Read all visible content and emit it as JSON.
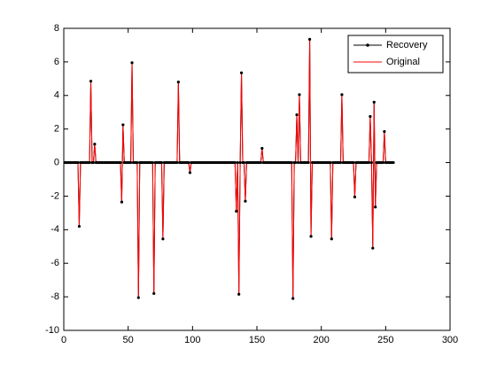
{
  "chart_data": {
    "type": "line",
    "x": [
      1,
      2,
      3,
      4,
      5,
      6,
      7,
      8,
      9,
      10,
      11,
      12,
      13,
      14,
      15,
      16,
      17,
      18,
      19,
      20,
      21,
      22,
      23,
      24,
      25,
      26,
      27,
      28,
      29,
      30,
      31,
      32,
      33,
      34,
      35,
      36,
      37,
      38,
      39,
      40,
      41,
      42,
      43,
      44,
      45,
      46,
      47,
      48,
      49,
      50,
      51,
      52,
      53,
      54,
      55,
      56,
      57,
      58,
      59,
      60,
      61,
      62,
      63,
      64,
      65,
      66,
      67,
      68,
      69,
      70,
      71,
      72,
      73,
      74,
      75,
      76,
      77,
      78,
      79,
      80,
      81,
      82,
      83,
      84,
      85,
      86,
      87,
      88,
      89,
      90,
      91,
      92,
      93,
      94,
      95,
      96,
      97,
      98,
      99,
      100,
      101,
      102,
      103,
      104,
      105,
      106,
      107,
      108,
      109,
      110,
      111,
      112,
      113,
      114,
      115,
      116,
      117,
      118,
      119,
      120,
      121,
      122,
      123,
      124,
      125,
      126,
      127,
      128,
      129,
      130,
      131,
      132,
      133,
      134,
      135,
      136,
      137,
      138,
      139,
      140,
      141,
      142,
      143,
      144,
      145,
      146,
      147,
      148,
      149,
      150,
      151,
      152,
      153,
      154,
      155,
      156,
      157,
      158,
      159,
      160,
      161,
      162,
      163,
      164,
      165,
      166,
      167,
      168,
      169,
      170,
      171,
      172,
      173,
      174,
      175,
      176,
      177,
      178,
      179,
      180,
      181,
      182,
      183,
      184,
      185,
      186,
      187,
      188,
      189,
      190,
      191,
      192,
      193,
      194,
      195,
      196,
      197,
      198,
      199,
      200,
      201,
      202,
      203,
      204,
      205,
      206,
      207,
      208,
      209,
      210,
      211,
      212,
      213,
      214,
      215,
      216,
      217,
      218,
      219,
      220,
      221,
      222,
      223,
      224,
      225,
      226,
      227,
      228,
      229,
      230,
      231,
      232,
      233,
      234,
      235,
      236,
      237,
      238,
      239,
      240,
      241,
      242,
      243,
      244,
      245,
      246,
      247,
      248,
      249,
      250,
      251,
      252,
      253,
      254,
      255,
      256
    ],
    "series": [
      {
        "name": "Recovery",
        "color": "#000000",
        "marker": "dot",
        "values": [
          0,
          0,
          0,
          0,
          0,
          0,
          0,
          0,
          0,
          0,
          0,
          -3.8,
          0,
          0,
          0,
          0,
          0,
          0,
          0,
          0,
          4.85,
          0,
          0,
          1.1,
          0,
          0,
          0,
          0,
          0,
          0,
          0,
          0,
          0,
          0,
          0,
          0,
          0,
          0,
          0,
          0,
          0,
          0,
          0,
          0,
          -2.35,
          2.25,
          0,
          0,
          0,
          0,
          0,
          0,
          5.95,
          0,
          0,
          0,
          0,
          -8.05,
          0,
          0,
          0,
          0,
          0,
          0,
          0,
          0,
          0,
          0,
          0,
          -7.8,
          0,
          0,
          0,
          0,
          0,
          0,
          -4.55,
          0,
          0,
          0,
          0,
          0,
          0,
          0,
          0,
          0,
          0,
          0,
          4.8,
          0,
          0,
          0,
          0,
          0,
          0,
          0,
          0,
          -0.6,
          0,
          0,
          0,
          0,
          0,
          0,
          0,
          0,
          0,
          0,
          0,
          0,
          0,
          0,
          0,
          0,
          0,
          0,
          0,
          0,
          0,
          0,
          0,
          0,
          0,
          0,
          0,
          0,
          0,
          0,
          0,
          0,
          0,
          0,
          0,
          -2.9,
          0,
          -7.85,
          0,
          5.35,
          0,
          0,
          -2.3,
          0,
          0,
          0,
          0,
          0,
          0,
          0,
          0,
          0,
          0,
          0,
          0,
          0.85,
          0,
          0,
          0,
          0,
          0,
          0,
          0,
          0,
          0,
          0,
          0,
          0,
          0,
          0,
          0,
          0,
          0,
          0,
          0,
          0,
          0,
          0,
          0,
          -8.1,
          0,
          0,
          2.85,
          0,
          4.05,
          0,
          0,
          0,
          0,
          0,
          0,
          0,
          7.35,
          -4.4,
          0,
          0,
          0,
          0,
          0,
          0,
          0,
          0,
          0,
          0,
          0,
          0,
          0,
          0,
          0,
          -4.55,
          0,
          0,
          0,
          0,
          0,
          0,
          0,
          4.05,
          0,
          0,
          0,
          0,
          0,
          0,
          0,
          0,
          0,
          -2.05,
          0,
          0,
          0,
          0,
          0,
          0,
          0,
          0,
          0,
          0,
          0,
          2.75,
          0,
          -5.1,
          3.6,
          -2.65,
          0,
          0,
          0,
          0,
          0,
          0,
          1.85,
          0,
          0,
          0,
          0,
          0,
          0,
          0
        ]
      },
      {
        "name": "Original",
        "color": "#ff0000",
        "values": [
          0,
          0,
          0,
          0,
          0,
          0,
          0,
          0,
          0,
          0,
          0,
          -3.8,
          0,
          0,
          0,
          0,
          0,
          0,
          0,
          0,
          4.85,
          0,
          0,
          1.1,
          0,
          0,
          0,
          0,
          0,
          0,
          0,
          0,
          0,
          0,
          0,
          0,
          0,
          0,
          0,
          0,
          0,
          0,
          0,
          0,
          -2.35,
          2.25,
          0,
          0,
          0,
          0,
          0,
          0,
          5.95,
          0,
          0,
          0,
          0,
          -8.05,
          0,
          0,
          0,
          0,
          0,
          0,
          0,
          0,
          0,
          0,
          0,
          -7.8,
          0,
          0,
          0,
          0,
          0,
          0,
          -4.55,
          0,
          0,
          0,
          0,
          0,
          0,
          0,
          0,
          0,
          0,
          0,
          4.8,
          0,
          0,
          0,
          0,
          0,
          0,
          0,
          0,
          -0.6,
          0,
          0,
          0,
          0,
          0,
          0,
          0,
          0,
          0,
          0,
          0,
          0,
          0,
          0,
          0,
          0,
          0,
          0,
          0,
          0,
          0,
          0,
          0,
          0,
          0,
          0,
          0,
          0,
          0,
          0,
          0,
          0,
          0,
          0,
          0,
          -2.9,
          0,
          -7.85,
          0,
          5.35,
          0,
          0,
          -2.3,
          0,
          0,
          0,
          0,
          0,
          0,
          0,
          0,
          0,
          0,
          0,
          0,
          0.85,
          0,
          0,
          0,
          0,
          0,
          0,
          0,
          0,
          0,
          0,
          0,
          0,
          0,
          0,
          0,
          0,
          0,
          0,
          0,
          0,
          0,
          0,
          0,
          -8.1,
          0,
          0,
          2.85,
          0,
          4.05,
          0,
          0,
          0,
          0,
          0,
          0,
          0,
          7.35,
          -4.4,
          0,
          0,
          0,
          0,
          0,
          0,
          0,
          0,
          0,
          0,
          0,
          0,
          0,
          0,
          0,
          -4.55,
          0,
          0,
          0,
          0,
          0,
          0,
          0,
          4.05,
          0,
          0,
          0,
          0,
          0,
          0,
          0,
          0,
          0,
          -2.05,
          0,
          0,
          0,
          0,
          0,
          0,
          0,
          0,
          0,
          0,
          0,
          2.75,
          0,
          -5.1,
          3.6,
          -2.65,
          0,
          0,
          0,
          0,
          0,
          0,
          1.85,
          0,
          0,
          0,
          0,
          0,
          0,
          0
        ]
      }
    ],
    "xlim": [
      0,
      300
    ],
    "xticks": [
      0,
      50,
      100,
      150,
      200,
      250,
      300
    ],
    "ylim": [
      -10,
      8
    ],
    "yticks": [
      -10,
      -8,
      -6,
      -4,
      -2,
      0,
      2,
      4,
      6,
      8
    ],
    "legend": "upper right"
  }
}
